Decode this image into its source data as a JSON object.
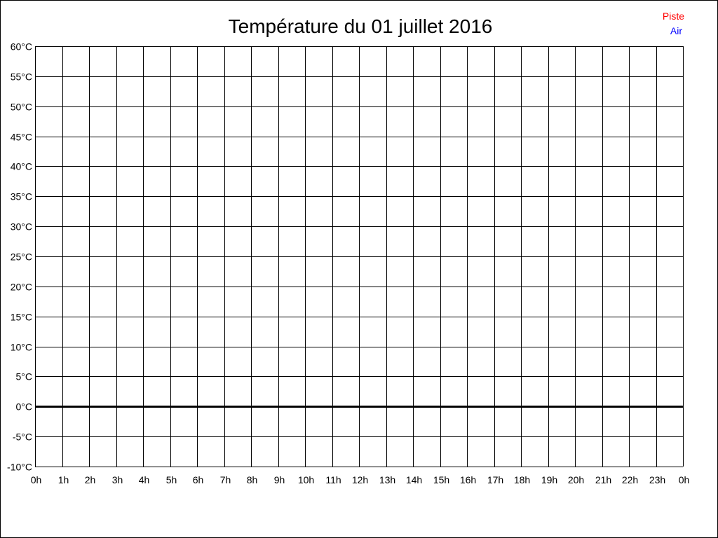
{
  "chart_data": {
    "type": "line",
    "title": "Température du 01 juillet 2016",
    "xlabel": "",
    "ylabel": "",
    "x_ticks": [
      "0h",
      "1h",
      "2h",
      "3h",
      "4h",
      "5h",
      "6h",
      "7h",
      "8h",
      "9h",
      "10h",
      "11h",
      "12h",
      "13h",
      "14h",
      "15h",
      "16h",
      "17h",
      "18h",
      "19h",
      "20h",
      "21h",
      "22h",
      "23h",
      "0h"
    ],
    "y_ticks": [
      "60°C",
      "55°C",
      "50°C",
      "45°C",
      "40°C",
      "35°C",
      "30°C",
      "25°C",
      "20°C",
      "15°C",
      "10°C",
      "5°C",
      "0°C",
      "-5°C",
      "-10°C"
    ],
    "ylim": [
      -10,
      60
    ],
    "y_step": 5,
    "xlim": [
      0,
      24
    ],
    "grid": true,
    "legend_position": "top-right",
    "series": [
      {
        "name": "Piste",
        "color": "#ff0000",
        "values": []
      },
      {
        "name": "Air",
        "color": "#0000ff",
        "values": []
      }
    ]
  }
}
